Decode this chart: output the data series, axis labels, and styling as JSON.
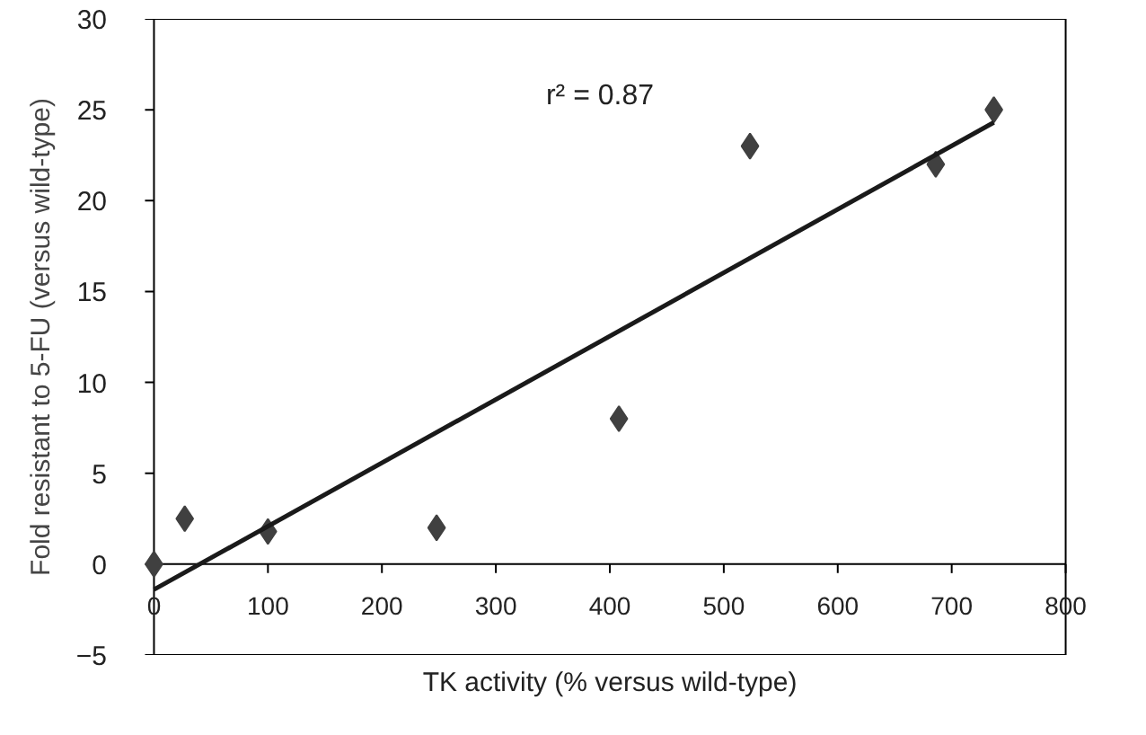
{
  "chart_data": {
    "type": "scatter",
    "xlabel": "TK activity (% versus wild-type)",
    "ylabel": "Fold resistant to 5-FU (versus wild-type)",
    "annotations": [
      "r² = 0.87"
    ],
    "series": [
      {
        "color": "#404040",
        "marker": "diamond",
        "x": [
          0,
          27,
          100,
          248,
          408,
          523,
          686,
          737
        ],
        "values": [
          0,
          2.5,
          1.8,
          2,
          8,
          23,
          22,
          25
        ]
      },
      {
        "type": "line",
        "color": "#1a1a1a",
        "marker": "none",
        "line_style": "solid",
        "x": [
          0,
          737
        ],
        "values": [
          -1.4,
          24.3
        ]
      }
    ],
    "xlim": [
      0,
      800
    ],
    "xticks": [
      0,
      100,
      200,
      300,
      400,
      500,
      600,
      700,
      800
    ],
    "ylim": [
      -5,
      30
    ],
    "yticks": [
      {
        "value": -5,
        "label": "−5"
      },
      0,
      5,
      10,
      15,
      20,
      25,
      30
    ],
    "grid": false
  }
}
